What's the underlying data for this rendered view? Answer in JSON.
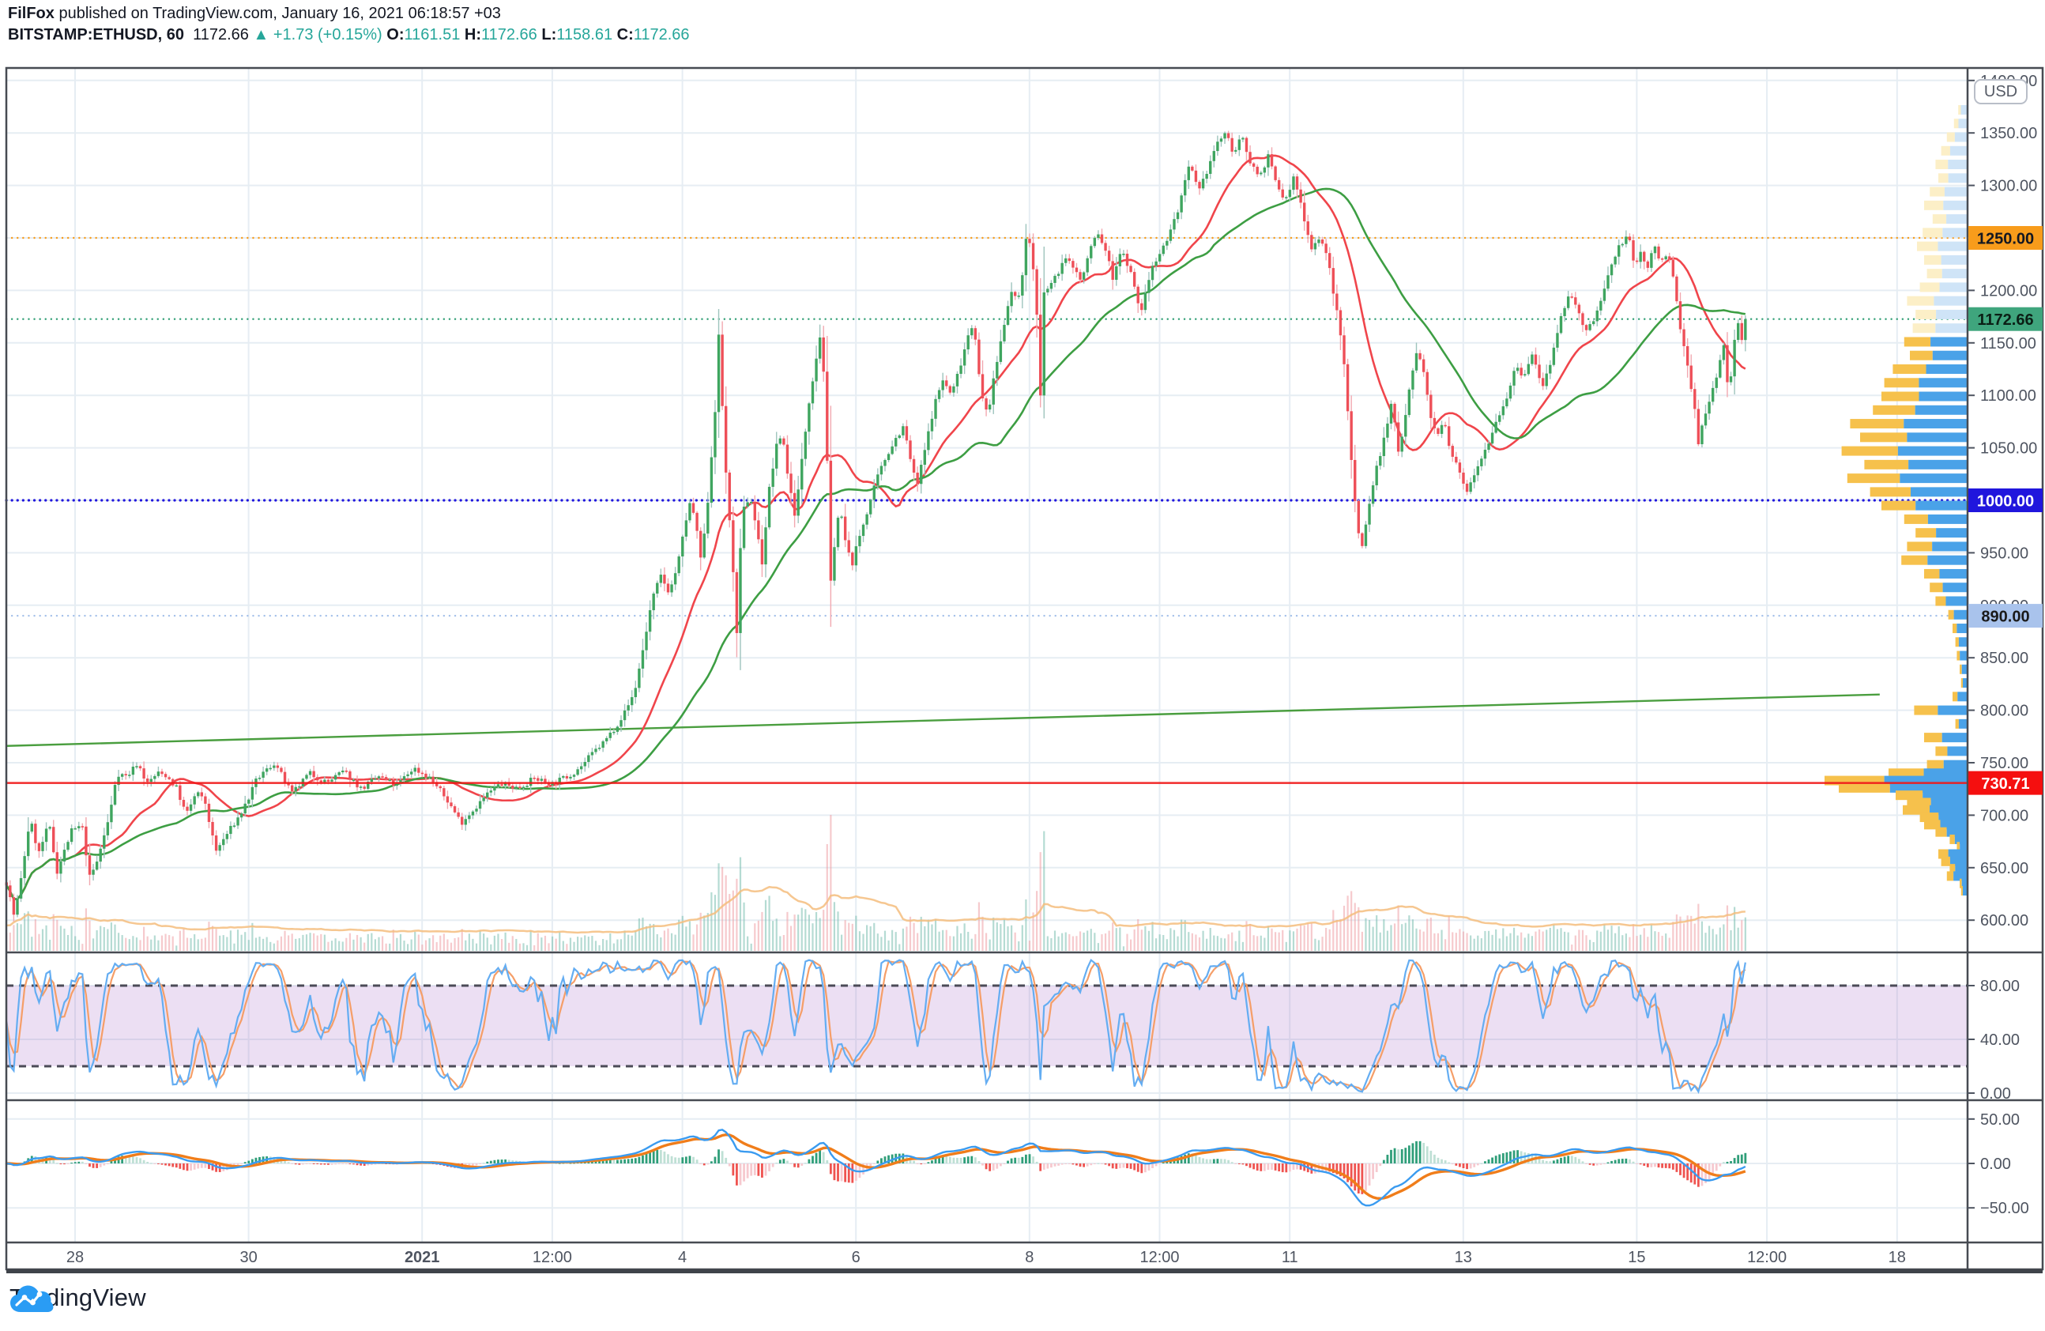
{
  "header": {
    "author": "FilFox",
    "published": " published on TradingView.com, January 16, 2021 06:18:57 +03",
    "symbol": "BITSTAMP:ETHUSD, 60",
    "last_price": "1172.66",
    "arrow": "▲",
    "change": "+1.73 (+0.15%)",
    "o_label": "O:",
    "o": "1161.51",
    "h_label": "H:",
    "h": "1172.66",
    "l_label": "L:",
    "l": "1158.61",
    "c_label": "C:",
    "c": "1172.66"
  },
  "axis": {
    "currency_button": "USD"
  },
  "logo": {
    "text": "TradingView"
  },
  "chart_data": {
    "type": "candlestick",
    "symbol": "BITSTAMP:ETHUSD",
    "interval_minutes": 60,
    "x_axis": {
      "unit": "days_from_2020-12-28",
      "range": [
        -0.9,
        21.8
      ],
      "ticks": [
        {
          "t": 0,
          "label": "28"
        },
        {
          "t": 2,
          "label": "30"
        },
        {
          "t": 4,
          "label": "2021",
          "bold": true
        },
        {
          "t": 5.5,
          "label": "12:00"
        },
        {
          "t": 7,
          "label": "4"
        },
        {
          "t": 9,
          "label": "6"
        },
        {
          "t": 11,
          "label": "8"
        },
        {
          "t": 12.5,
          "label": "12:00"
        },
        {
          "t": 14,
          "label": "11"
        },
        {
          "t": 16,
          "label": "13"
        },
        {
          "t": 18,
          "label": "15"
        },
        {
          "t": 19.5,
          "label": "12:00"
        },
        {
          "t": 21,
          "label": "18"
        }
      ]
    },
    "y_axis": {
      "label": "USD",
      "min": 569,
      "max": 1412,
      "tick_step": 50,
      "tick_min": 600,
      "tick_max": 1400
    },
    "key_levels": [
      {
        "price": 1250.0,
        "label": "1250.00",
        "style": "dotted",
        "color": "#f89c1b",
        "label_bg": "#f89c1b",
        "label_fg": "#131722"
      },
      {
        "price": 1172.66,
        "label": "1172.66",
        "style": "dotted",
        "color": "#2f9e74",
        "label_bg": "#3fa57d",
        "label_fg": "#0b1f15"
      },
      {
        "price": 1000.0,
        "label": "1000.00",
        "style": "dotted",
        "color": "#2016dd",
        "label_bg": "#2016dd",
        "label_fg": "#ffffff"
      },
      {
        "price": 890.0,
        "label": "890.00",
        "style": "dotted",
        "color": "#a5c1ea",
        "label_bg": "#a9c3ec",
        "label_fg": "#1a1a1a"
      },
      {
        "price": 730.71,
        "label": "730.71",
        "style": "solid",
        "color": "#f01818",
        "label_bg": "#f50f0f",
        "label_fg": "#ffffff"
      }
    ],
    "trendline": {
      "from": [
        -0.79,
        766
      ],
      "to": [
        20.8,
        815
      ],
      "color": "#4a9e3f"
    },
    "moving_averages": [
      {
        "name": "SMA fast",
        "period_hours": 20,
        "color": "#f0454b"
      },
      {
        "name": "SMA slow",
        "period_hours": 48,
        "color": "#3d9e43"
      }
    ],
    "indicators": [
      {
        "name": "Stochastic",
        "params": [
          14,
          3
        ],
        "range": [
          0,
          100
        ],
        "band": [
          20,
          80
        ],
        "ticks": [
          0,
          40,
          80
        ]
      },
      {
        "name": "MACD",
        "params": [
          12,
          26,
          9
        ],
        "ticks": [
          -50,
          0,
          50
        ]
      }
    ],
    "price_path_t_close": [
      [
        -0.79,
        636
      ],
      [
        -0.7,
        603
      ],
      [
        -0.62,
        640
      ],
      [
        -0.52,
        697
      ],
      [
        -0.42,
        663
      ],
      [
        -0.3,
        692
      ],
      [
        -0.21,
        646
      ],
      [
        -0.04,
        685
      ],
      [
        0.08,
        690
      ],
      [
        0.17,
        640
      ],
      [
        0.25,
        655
      ],
      [
        0.4,
        700
      ],
      [
        0.48,
        740
      ],
      [
        0.6,
        737
      ],
      [
        0.72,
        750
      ],
      [
        0.83,
        730
      ],
      [
        0.95,
        740
      ],
      [
        1.05,
        738
      ],
      [
        1.17,
        726
      ],
      [
        1.28,
        700
      ],
      [
        1.4,
        722
      ],
      [
        1.5,
        712
      ],
      [
        1.62,
        665
      ],
      [
        1.75,
        682
      ],
      [
        1.9,
        700
      ],
      [
        2.0,
        716
      ],
      [
        2.1,
        735
      ],
      [
        2.3,
        750
      ],
      [
        2.5,
        720
      ],
      [
        2.7,
        740
      ],
      [
        2.9,
        731
      ],
      [
        3.1,
        742
      ],
      [
        3.3,
        725
      ],
      [
        3.5,
        737
      ],
      [
        3.7,
        728
      ],
      [
        3.9,
        745
      ],
      [
        4.1,
        735
      ],
      [
        4.3,
        713
      ],
      [
        4.45,
        693
      ],
      [
        4.6,
        706
      ],
      [
        4.75,
        720
      ],
      [
        4.9,
        730
      ],
      [
        5.1,
        726
      ],
      [
        5.3,
        735
      ],
      [
        5.5,
        730
      ],
      [
        5.7,
        738
      ],
      [
        5.85,
        748
      ],
      [
        6.0,
        762
      ],
      [
        6.1,
        770
      ],
      [
        6.26,
        788
      ],
      [
        6.35,
        800
      ],
      [
        6.45,
        818
      ],
      [
        6.55,
        860
      ],
      [
        6.65,
        905
      ],
      [
        6.75,
        928
      ],
      [
        6.85,
        912
      ],
      [
        6.95,
        940
      ],
      [
        7.05,
        985
      ],
      [
        7.1,
        1000
      ],
      [
        7.15,
        978
      ],
      [
        7.22,
        940
      ],
      [
        7.3,
        1005
      ],
      [
        7.38,
        1090
      ],
      [
        7.42,
        1158
      ],
      [
        7.46,
        1090
      ],
      [
        7.52,
        1000
      ],
      [
        7.58,
        945
      ],
      [
        7.62,
        858
      ],
      [
        7.67,
        955
      ],
      [
        7.7,
        990
      ],
      [
        7.78,
        1005
      ],
      [
        7.85,
        975
      ],
      [
        7.92,
        940
      ],
      [
        8.0,
        1010
      ],
      [
        8.08,
        1050
      ],
      [
        8.15,
        1065
      ],
      [
        8.22,
        1020
      ],
      [
        8.3,
        985
      ],
      [
        8.38,
        1040
      ],
      [
        8.46,
        1095
      ],
      [
        8.54,
        1135
      ],
      [
        8.6,
        1163
      ],
      [
        8.65,
        1090
      ],
      [
        8.68,
        1000
      ],
      [
        8.72,
        895
      ],
      [
        8.76,
        975
      ],
      [
        8.82,
        990
      ],
      [
        8.88,
        960
      ],
      [
        8.95,
        938
      ],
      [
        9.05,
        968
      ],
      [
        9.15,
        995
      ],
      [
        9.25,
        1022
      ],
      [
        9.35,
        1042
      ],
      [
        9.45,
        1058
      ],
      [
        9.55,
        1070
      ],
      [
        9.62,
        1042
      ],
      [
        9.7,
        1012
      ],
      [
        9.8,
        1050
      ],
      [
        9.9,
        1090
      ],
      [
        10.0,
        1115
      ],
      [
        10.1,
        1100
      ],
      [
        10.2,
        1128
      ],
      [
        10.3,
        1160
      ],
      [
        10.36,
        1170
      ],
      [
        10.44,
        1100
      ],
      [
        10.52,
        1082
      ],
      [
        10.62,
        1130
      ],
      [
        10.7,
        1165
      ],
      [
        10.78,
        1200
      ],
      [
        10.86,
        1188
      ],
      [
        10.92,
        1218
      ],
      [
        10.97,
        1255
      ],
      [
        11.02,
        1240
      ],
      [
        11.08,
        1190
      ],
      [
        11.12,
        1078
      ],
      [
        11.16,
        1196
      ],
      [
        11.3,
        1212
      ],
      [
        11.4,
        1230
      ],
      [
        11.5,
        1224
      ],
      [
        11.6,
        1208
      ],
      [
        11.7,
        1240
      ],
      [
        11.78,
        1255
      ],
      [
        11.88,
        1238
      ],
      [
        11.96,
        1212
      ],
      [
        12.05,
        1238
      ],
      [
        12.15,
        1222
      ],
      [
        12.28,
        1178
      ],
      [
        12.42,
        1225
      ],
      [
        12.55,
        1242
      ],
      [
        12.7,
        1273
      ],
      [
        12.85,
        1320
      ],
      [
        12.95,
        1292
      ],
      [
        13.05,
        1315
      ],
      [
        13.15,
        1338
      ],
      [
        13.25,
        1350
      ],
      [
        13.35,
        1332
      ],
      [
        13.45,
        1345
      ],
      [
        13.55,
        1322
      ],
      [
        13.65,
        1308
      ],
      [
        13.75,
        1328
      ],
      [
        13.85,
        1300
      ],
      [
        13.95,
        1285
      ],
      [
        14.05,
        1308
      ],
      [
        14.15,
        1275
      ],
      [
        14.25,
        1240
      ],
      [
        14.35,
        1252
      ],
      [
        14.45,
        1225
      ],
      [
        14.52,
        1190
      ],
      [
        14.58,
        1160
      ],
      [
        14.64,
        1120
      ],
      [
        14.7,
        1050
      ],
      [
        14.76,
        990
      ],
      [
        14.82,
        952
      ],
      [
        14.88,
        978
      ],
      [
        14.95,
        1012
      ],
      [
        15.02,
        1038
      ],
      [
        15.1,
        1062
      ],
      [
        15.18,
        1095
      ],
      [
        15.25,
        1045
      ],
      [
        15.32,
        1075
      ],
      [
        15.4,
        1120
      ],
      [
        15.48,
        1145
      ],
      [
        15.55,
        1118
      ],
      [
        15.62,
        1080
      ],
      [
        15.7,
        1062
      ],
      [
        15.78,
        1075
      ],
      [
        15.85,
        1045
      ],
      [
        15.95,
        1028
      ],
      [
        16.03,
        1008
      ],
      [
        16.1,
        1022
      ],
      [
        16.2,
        1040
      ],
      [
        16.3,
        1058
      ],
      [
        16.4,
        1080
      ],
      [
        16.5,
        1098
      ],
      [
        16.6,
        1126
      ],
      [
        16.7,
        1118
      ],
      [
        16.8,
        1140
      ],
      [
        16.9,
        1108
      ],
      [
        17.0,
        1126
      ],
      [
        17.1,
        1164
      ],
      [
        17.2,
        1196
      ],
      [
        17.3,
        1188
      ],
      [
        17.4,
        1158
      ],
      [
        17.5,
        1172
      ],
      [
        17.58,
        1188
      ],
      [
        17.7,
        1222
      ],
      [
        17.8,
        1243
      ],
      [
        17.9,
        1252
      ],
      [
        17.98,
        1222
      ],
      [
        18.05,
        1238
      ],
      [
        18.12,
        1220
      ],
      [
        18.2,
        1242
      ],
      [
        18.28,
        1228
      ],
      [
        18.36,
        1238
      ],
      [
        18.44,
        1200
      ],
      [
        18.5,
        1163
      ],
      [
        18.56,
        1140
      ],
      [
        18.62,
        1110
      ],
      [
        18.68,
        1085
      ],
      [
        18.72,
        1042
      ],
      [
        18.76,
        1078
      ],
      [
        18.8,
        1082
      ],
      [
        18.86,
        1102
      ],
      [
        18.92,
        1118
      ],
      [
        19.0,
        1149
      ],
      [
        19.06,
        1098
      ],
      [
        19.12,
        1150
      ],
      [
        19.16,
        1176
      ],
      [
        19.2,
        1152
      ],
      [
        19.26,
        1172.66
      ]
    ],
    "volume_profile": {
      "value_area_high": 1158,
      "poc_price": 730.71,
      "rows_price_len_yellowfrac": [
        [
          1372,
          0.06,
          0.3
        ],
        [
          1359,
          0.09,
          0.35
        ],
        [
          1346,
          0.14,
          0.4
        ],
        [
          1333,
          0.18,
          0.35
        ],
        [
          1320,
          0.22,
          0.4
        ],
        [
          1307,
          0.2,
          0.35
        ],
        [
          1294,
          0.26,
          0.4
        ],
        [
          1281,
          0.3,
          0.45
        ],
        [
          1268,
          0.24,
          0.4
        ],
        [
          1255,
          0.31,
          0.45
        ],
        [
          1242,
          0.35,
          0.42
        ],
        [
          1229,
          0.3,
          0.4
        ],
        [
          1216,
          0.28,
          0.38
        ],
        [
          1203,
          0.33,
          0.42
        ],
        [
          1190,
          0.42,
          0.45
        ],
        [
          1177,
          0.36,
          0.4
        ],
        [
          1164,
          0.38,
          0.42
        ],
        [
          1151,
          0.44,
          0.42
        ],
        [
          1138,
          0.4,
          0.4
        ],
        [
          1125,
          0.52,
          0.45
        ],
        [
          1112,
          0.58,
          0.42
        ],
        [
          1099,
          0.6,
          0.44
        ],
        [
          1086,
          0.66,
          0.45
        ],
        [
          1073,
          0.82,
          0.46
        ],
        [
          1060,
          0.75,
          0.44
        ],
        [
          1047,
          0.88,
          0.45
        ],
        [
          1034,
          0.72,
          0.43
        ],
        [
          1021,
          0.84,
          0.44
        ],
        [
          1008,
          0.68,
          0.42
        ],
        [
          995,
          0.6,
          0.4
        ],
        [
          982,
          0.44,
          0.38
        ],
        [
          969,
          0.36,
          0.4
        ],
        [
          956,
          0.42,
          0.42
        ],
        [
          943,
          0.46,
          0.4
        ],
        [
          930,
          0.3,
          0.36
        ],
        [
          917,
          0.26,
          0.35
        ],
        [
          904,
          0.22,
          0.33
        ],
        [
          891,
          0.13,
          0.3
        ],
        [
          878,
          0.1,
          0.3
        ],
        [
          865,
          0.08,
          0.3
        ],
        [
          852,
          0.07,
          0.3
        ],
        [
          839,
          0.05,
          0.3
        ],
        [
          826,
          0.04,
          0.3
        ],
        [
          813,
          0.1,
          0.35
        ],
        [
          800,
          0.37,
          0.45
        ],
        [
          787,
          0.08,
          0.3
        ],
        [
          774,
          0.3,
          0.42
        ],
        [
          761,
          0.22,
          0.38
        ],
        [
          748,
          0.28,
          0.42
        ],
        [
          740,
          0.55,
          0.45
        ],
        [
          733,
          1.0,
          0.42
        ],
        [
          726,
          0.9,
          0.4
        ],
        [
          719,
          0.5,
          0.38
        ],
        [
          712,
          0.42,
          0.4
        ],
        [
          705,
          0.45,
          0.42
        ],
        [
          698,
          0.33,
          0.4
        ],
        [
          691,
          0.3,
          0.38
        ],
        [
          684,
          0.22,
          0.36
        ],
        [
          677,
          0.12,
          0.3
        ],
        [
          670,
          0.07,
          0.3
        ],
        [
          663,
          0.2,
          0.35
        ],
        [
          656,
          0.18,
          0.35
        ],
        [
          649,
          0.12,
          0.32
        ],
        [
          642,
          0.14,
          0.33
        ],
        [
          635,
          0.05,
          0.3
        ],
        [
          628,
          0.04,
          0.3
        ]
      ]
    }
  }
}
